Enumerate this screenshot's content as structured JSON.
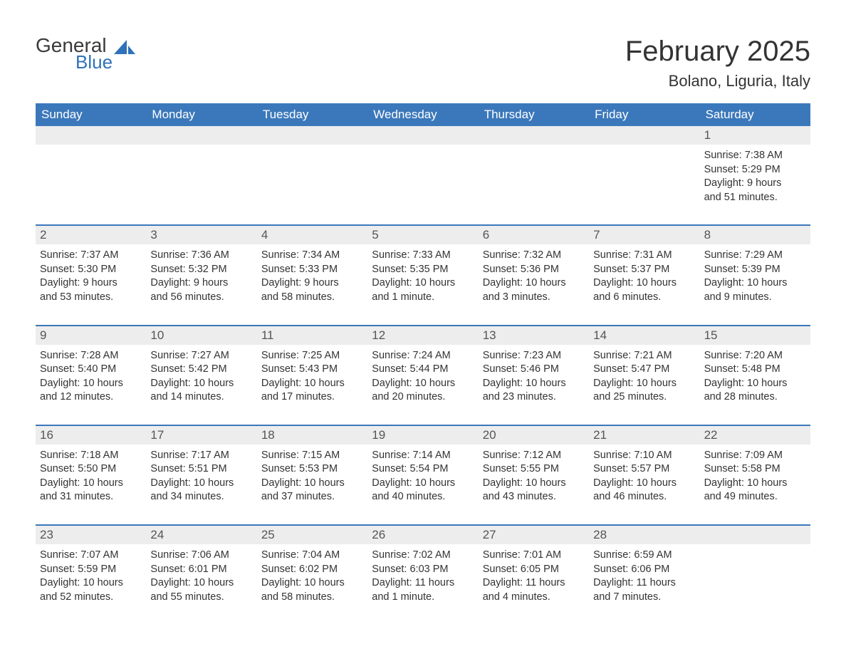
{
  "logo": {
    "general": "General",
    "blue": "Blue"
  },
  "title": "February 2025",
  "location": "Bolano, Liguria, Italy",
  "colors": {
    "header_bg": "#3b78bb",
    "header_text": "#ffffff",
    "daynum_bg": "#ededed",
    "border": "#3b78bb",
    "body_text": "#333333",
    "logo_blue": "#2f72b8"
  },
  "day_names": [
    "Sunday",
    "Monday",
    "Tuesday",
    "Wednesday",
    "Thursday",
    "Friday",
    "Saturday"
  ],
  "weeks": [
    [
      {
        "n": "",
        "sr": "",
        "ss": "",
        "dl1": "",
        "dl2": ""
      },
      {
        "n": "",
        "sr": "",
        "ss": "",
        "dl1": "",
        "dl2": ""
      },
      {
        "n": "",
        "sr": "",
        "ss": "",
        "dl1": "",
        "dl2": ""
      },
      {
        "n": "",
        "sr": "",
        "ss": "",
        "dl1": "",
        "dl2": ""
      },
      {
        "n": "",
        "sr": "",
        "ss": "",
        "dl1": "",
        "dl2": ""
      },
      {
        "n": "",
        "sr": "",
        "ss": "",
        "dl1": "",
        "dl2": ""
      },
      {
        "n": "1",
        "sr": "Sunrise: 7:38 AM",
        "ss": "Sunset: 5:29 PM",
        "dl1": "Daylight: 9 hours",
        "dl2": "and 51 minutes."
      }
    ],
    [
      {
        "n": "2",
        "sr": "Sunrise: 7:37 AM",
        "ss": "Sunset: 5:30 PM",
        "dl1": "Daylight: 9 hours",
        "dl2": "and 53 minutes."
      },
      {
        "n": "3",
        "sr": "Sunrise: 7:36 AM",
        "ss": "Sunset: 5:32 PM",
        "dl1": "Daylight: 9 hours",
        "dl2": "and 56 minutes."
      },
      {
        "n": "4",
        "sr": "Sunrise: 7:34 AM",
        "ss": "Sunset: 5:33 PM",
        "dl1": "Daylight: 9 hours",
        "dl2": "and 58 minutes."
      },
      {
        "n": "5",
        "sr": "Sunrise: 7:33 AM",
        "ss": "Sunset: 5:35 PM",
        "dl1": "Daylight: 10 hours",
        "dl2": "and 1 minute."
      },
      {
        "n": "6",
        "sr": "Sunrise: 7:32 AM",
        "ss": "Sunset: 5:36 PM",
        "dl1": "Daylight: 10 hours",
        "dl2": "and 3 minutes."
      },
      {
        "n": "7",
        "sr": "Sunrise: 7:31 AM",
        "ss": "Sunset: 5:37 PM",
        "dl1": "Daylight: 10 hours",
        "dl2": "and 6 minutes."
      },
      {
        "n": "8",
        "sr": "Sunrise: 7:29 AM",
        "ss": "Sunset: 5:39 PM",
        "dl1": "Daylight: 10 hours",
        "dl2": "and 9 minutes."
      }
    ],
    [
      {
        "n": "9",
        "sr": "Sunrise: 7:28 AM",
        "ss": "Sunset: 5:40 PM",
        "dl1": "Daylight: 10 hours",
        "dl2": "and 12 minutes."
      },
      {
        "n": "10",
        "sr": "Sunrise: 7:27 AM",
        "ss": "Sunset: 5:42 PM",
        "dl1": "Daylight: 10 hours",
        "dl2": "and 14 minutes."
      },
      {
        "n": "11",
        "sr": "Sunrise: 7:25 AM",
        "ss": "Sunset: 5:43 PM",
        "dl1": "Daylight: 10 hours",
        "dl2": "and 17 minutes."
      },
      {
        "n": "12",
        "sr": "Sunrise: 7:24 AM",
        "ss": "Sunset: 5:44 PM",
        "dl1": "Daylight: 10 hours",
        "dl2": "and 20 minutes."
      },
      {
        "n": "13",
        "sr": "Sunrise: 7:23 AM",
        "ss": "Sunset: 5:46 PM",
        "dl1": "Daylight: 10 hours",
        "dl2": "and 23 minutes."
      },
      {
        "n": "14",
        "sr": "Sunrise: 7:21 AM",
        "ss": "Sunset: 5:47 PM",
        "dl1": "Daylight: 10 hours",
        "dl2": "and 25 minutes."
      },
      {
        "n": "15",
        "sr": "Sunrise: 7:20 AM",
        "ss": "Sunset: 5:48 PM",
        "dl1": "Daylight: 10 hours",
        "dl2": "and 28 minutes."
      }
    ],
    [
      {
        "n": "16",
        "sr": "Sunrise: 7:18 AM",
        "ss": "Sunset: 5:50 PM",
        "dl1": "Daylight: 10 hours",
        "dl2": "and 31 minutes."
      },
      {
        "n": "17",
        "sr": "Sunrise: 7:17 AM",
        "ss": "Sunset: 5:51 PM",
        "dl1": "Daylight: 10 hours",
        "dl2": "and 34 minutes."
      },
      {
        "n": "18",
        "sr": "Sunrise: 7:15 AM",
        "ss": "Sunset: 5:53 PM",
        "dl1": "Daylight: 10 hours",
        "dl2": "and 37 minutes."
      },
      {
        "n": "19",
        "sr": "Sunrise: 7:14 AM",
        "ss": "Sunset: 5:54 PM",
        "dl1": "Daylight: 10 hours",
        "dl2": "and 40 minutes."
      },
      {
        "n": "20",
        "sr": "Sunrise: 7:12 AM",
        "ss": "Sunset: 5:55 PM",
        "dl1": "Daylight: 10 hours",
        "dl2": "and 43 minutes."
      },
      {
        "n": "21",
        "sr": "Sunrise: 7:10 AM",
        "ss": "Sunset: 5:57 PM",
        "dl1": "Daylight: 10 hours",
        "dl2": "and 46 minutes."
      },
      {
        "n": "22",
        "sr": "Sunrise: 7:09 AM",
        "ss": "Sunset: 5:58 PM",
        "dl1": "Daylight: 10 hours",
        "dl2": "and 49 minutes."
      }
    ],
    [
      {
        "n": "23",
        "sr": "Sunrise: 7:07 AM",
        "ss": "Sunset: 5:59 PM",
        "dl1": "Daylight: 10 hours",
        "dl2": "and 52 minutes."
      },
      {
        "n": "24",
        "sr": "Sunrise: 7:06 AM",
        "ss": "Sunset: 6:01 PM",
        "dl1": "Daylight: 10 hours",
        "dl2": "and 55 minutes."
      },
      {
        "n": "25",
        "sr": "Sunrise: 7:04 AM",
        "ss": "Sunset: 6:02 PM",
        "dl1": "Daylight: 10 hours",
        "dl2": "and 58 minutes."
      },
      {
        "n": "26",
        "sr": "Sunrise: 7:02 AM",
        "ss": "Sunset: 6:03 PM",
        "dl1": "Daylight: 11 hours",
        "dl2": "and 1 minute."
      },
      {
        "n": "27",
        "sr": "Sunrise: 7:01 AM",
        "ss": "Sunset: 6:05 PM",
        "dl1": "Daylight: 11 hours",
        "dl2": "and 4 minutes."
      },
      {
        "n": "28",
        "sr": "Sunrise: 6:59 AM",
        "ss": "Sunset: 6:06 PM",
        "dl1": "Daylight: 11 hours",
        "dl2": "and 7 minutes."
      },
      {
        "n": "",
        "sr": "",
        "ss": "",
        "dl1": "",
        "dl2": ""
      }
    ]
  ]
}
